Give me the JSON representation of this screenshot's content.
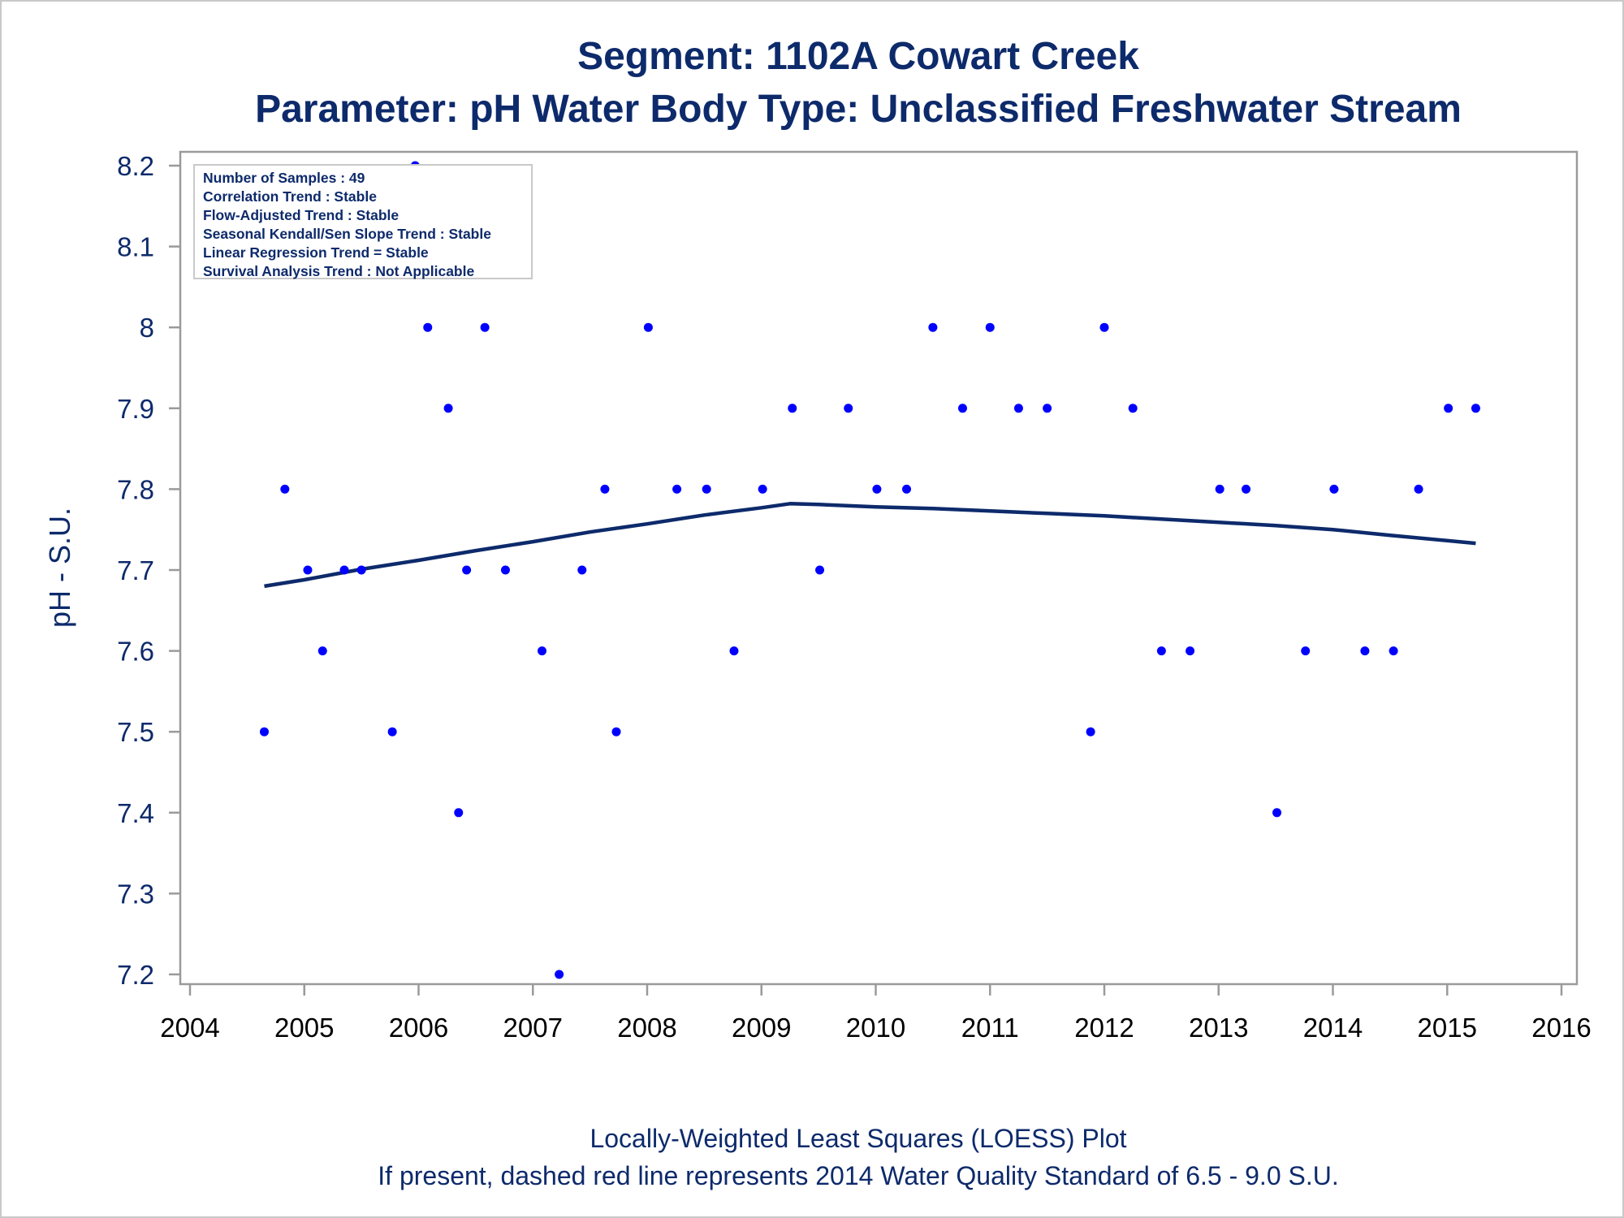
{
  "titles": {
    "line1": "Segment: 1102A  Cowart Creek",
    "line2": "Parameter: pH   Water Body Type: Unclassified Freshwater Stream"
  },
  "info_box": {
    "lines": [
      "Number of Samples : 49",
      "Correlation Trend : Stable",
      "Flow-Adjusted Trend : Stable",
      "Seasonal Kendall/Sen Slope Trend : Stable",
      "Linear Regression Trend = Stable",
      "Survival Analysis Trend : Not Applicable"
    ]
  },
  "footer": {
    "line1": "Locally-Weighted Least Squares (LOESS) Plot",
    "line2": "If present, dashed red line represents 2014 Water Quality Standard of 6.5 - 9.0 S.U."
  },
  "colors": {
    "points": "#0000ff",
    "loess_line": "#0d2a6b",
    "text": "#0d2a6b",
    "frame": "#9a9a9a"
  },
  "chart_data": {
    "type": "scatter",
    "title": "Segment: 1102A  Cowart Creek",
    "subtitle": "Parameter: pH   Water Body Type: Unclassified Freshwater Stream",
    "xlabel": "",
    "ylabel": "pH - S.U.",
    "xlim": [
      2004,
      2016
    ],
    "ylim": [
      7.2,
      8.2
    ],
    "x_ticks": [
      2004,
      2005,
      2006,
      2007,
      2008,
      2009,
      2010,
      2011,
      2012,
      2013,
      2014,
      2015,
      2016
    ],
    "y_ticks": [
      7.2,
      7.3,
      7.4,
      7.5,
      7.6,
      7.7,
      7.8,
      7.9,
      8,
      8.1,
      8.2
    ],
    "grid": false,
    "series": [
      {
        "type": "scatter",
        "points": [
          [
            2004.65,
            7.5
          ],
          [
            2004.83,
            7.8
          ],
          [
            2005.03,
            7.7
          ],
          [
            2005.16,
            7.6
          ],
          [
            2005.35,
            7.7
          ],
          [
            2005.5,
            7.7
          ],
          [
            2005.77,
            7.5
          ],
          [
            2005.97,
            8.2
          ],
          [
            2006.08,
            8.0
          ],
          [
            2006.26,
            7.9
          ],
          [
            2006.35,
            7.4
          ],
          [
            2006.42,
            7.7
          ],
          [
            2006.58,
            8.0
          ],
          [
            2006.76,
            7.7
          ],
          [
            2007.08,
            7.6
          ],
          [
            2007.23,
            7.2
          ],
          [
            2007.43,
            7.7
          ],
          [
            2007.63,
            7.8
          ],
          [
            2007.73,
            7.5
          ],
          [
            2008.01,
            8.0
          ],
          [
            2008.26,
            7.8
          ],
          [
            2008.52,
            7.8
          ],
          [
            2008.76,
            7.6
          ],
          [
            2009.01,
            7.8
          ],
          [
            2009.27,
            7.9
          ],
          [
            2009.51,
            7.7
          ],
          [
            2009.76,
            7.9
          ],
          [
            2010.01,
            7.8
          ],
          [
            2010.27,
            7.8
          ],
          [
            2010.5,
            8.0
          ],
          [
            2010.76,
            7.9
          ],
          [
            2011.0,
            8.0
          ],
          [
            2011.25,
            7.9
          ],
          [
            2011.5,
            7.9
          ],
          [
            2011.88,
            7.5
          ],
          [
            2012.0,
            8.0
          ],
          [
            2012.25,
            7.9
          ],
          [
            2012.5,
            7.6
          ],
          [
            2012.75,
            7.6
          ],
          [
            2013.01,
            7.8
          ],
          [
            2013.24,
            7.8
          ],
          [
            2013.51,
            7.4
          ],
          [
            2013.76,
            7.6
          ],
          [
            2014.01,
            7.8
          ],
          [
            2014.28,
            7.6
          ],
          [
            2014.53,
            7.6
          ],
          [
            2014.75,
            7.8
          ],
          [
            2015.01,
            7.9
          ],
          [
            2015.25,
            7.9
          ]
        ]
      },
      {
        "type": "line",
        "points": [
          [
            2004.65,
            7.68
          ],
          [
            2005.0,
            7.688
          ],
          [
            2005.5,
            7.701
          ],
          [
            2006.0,
            7.712
          ],
          [
            2006.5,
            7.724
          ],
          [
            2007.0,
            7.735
          ],
          [
            2007.5,
            7.747
          ],
          [
            2008.0,
            7.757
          ],
          [
            2008.5,
            7.768
          ],
          [
            2009.0,
            7.777
          ],
          [
            2009.25,
            7.782
          ],
          [
            2009.5,
            7.781
          ],
          [
            2010.0,
            7.778
          ],
          [
            2010.5,
            7.776
          ],
          [
            2011.0,
            7.773
          ],
          [
            2011.5,
            7.77
          ],
          [
            2012.0,
            7.767
          ],
          [
            2012.5,
            7.763
          ],
          [
            2013.0,
            7.759
          ],
          [
            2013.5,
            7.755
          ],
          [
            2014.0,
            7.75
          ],
          [
            2014.5,
            7.743
          ],
          [
            2015.25,
            7.733
          ]
        ]
      }
    ]
  }
}
